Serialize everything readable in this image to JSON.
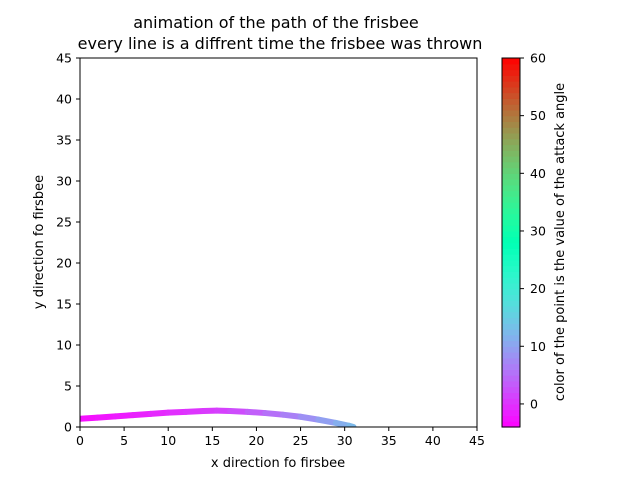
{
  "chart_data": {
    "type": "line",
    "title": "animation of the path of the frisbee",
    "subtitle": "every line is a diffrent time the frisbee was thrown",
    "xlabel": "x direction fo firsbee",
    "ylabel": "y direction fo firsbee",
    "xlim": [
      0,
      45
    ],
    "ylim": [
      0,
      45
    ],
    "xticks": [
      "0",
      "5",
      "10",
      "15",
      "20",
      "25",
      "30",
      "35",
      "40",
      "45"
    ],
    "yticks": [
      "0",
      "5",
      "10",
      "15",
      "20",
      "25",
      "30",
      "35",
      "40",
      "45"
    ],
    "grid": false,
    "colormap": "rainbow",
    "series": [
      {
        "x": [
          0,
          2,
          4,
          6,
          8,
          10,
          12,
          14,
          15.5,
          17,
          19,
          21,
          23,
          25,
          27,
          29,
          30.5,
          31
        ],
        "y": [
          1.0,
          1.15,
          1.3,
          1.45,
          1.6,
          1.75,
          1.85,
          1.95,
          2.0,
          1.95,
          1.85,
          1.7,
          1.5,
          1.25,
          0.9,
          0.5,
          0.15,
          0.0
        ],
        "attack_angle": [
          -3,
          -2.5,
          -2,
          -1.5,
          -1,
          -0.5,
          0,
          0.5,
          1,
          1.5,
          3,
          4.5,
          6,
          7.5,
          9,
          10.5,
          12,
          13
        ]
      }
    ],
    "colorbar": {
      "label": "color of the point is the value of the attack angle",
      "range": [
        -4,
        60
      ],
      "ticks": [
        "0",
        "10",
        "20",
        "30",
        "40",
        "50",
        "60"
      ],
      "tick_values": [
        0,
        10,
        20,
        30,
        40,
        50,
        60
      ]
    }
  }
}
